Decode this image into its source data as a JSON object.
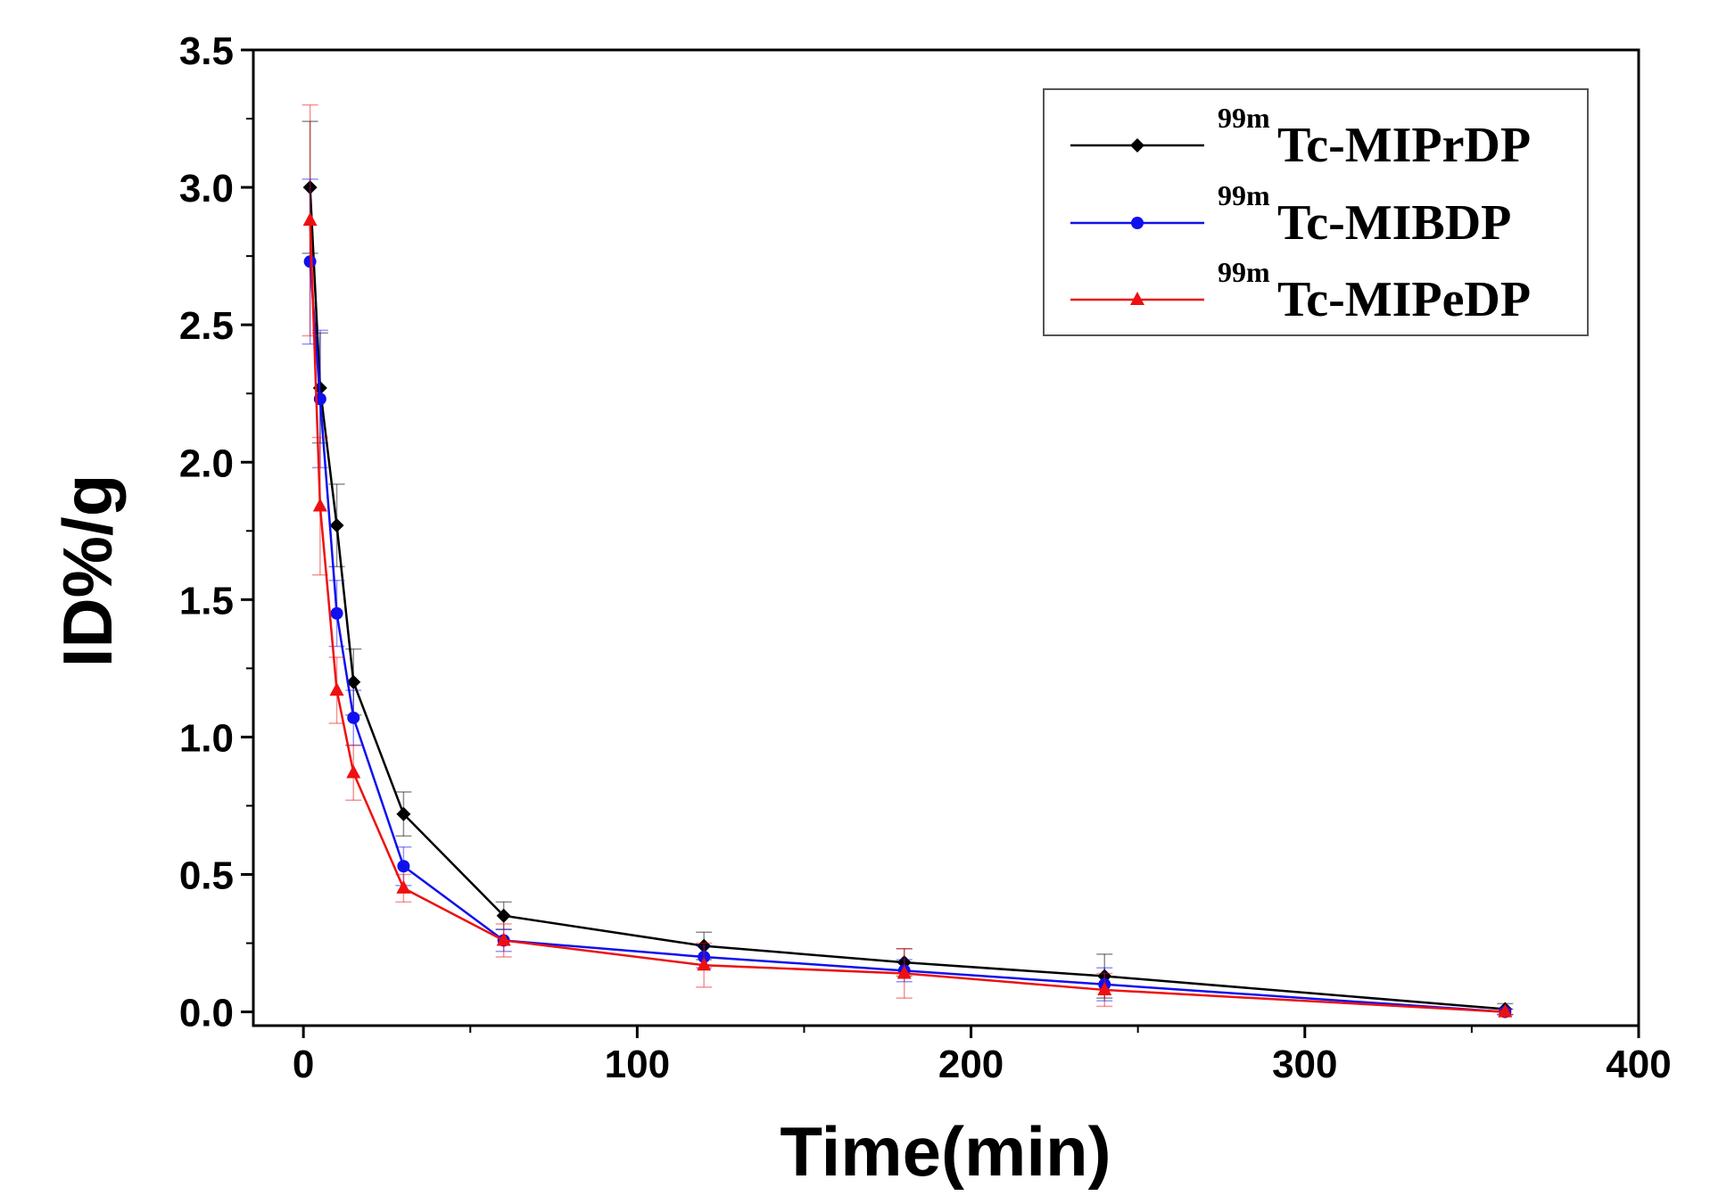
{
  "chart_data": {
    "type": "line",
    "xlabel": "Time(min)",
    "ylabel": "ID%/g",
    "xlim": [
      -15,
      400
    ],
    "ylim": [
      -0.05,
      3.5
    ],
    "xticks": [
      0,
      100,
      200,
      300,
      400
    ],
    "yticks": [
      0.0,
      0.5,
      1.0,
      1.5,
      2.0,
      2.5,
      3.0,
      3.5
    ],
    "xtick_labels": [
      "0",
      "100",
      "200",
      "300",
      "400"
    ],
    "ytick_labels": [
      "0.0",
      "0.5",
      "1.0",
      "1.5",
      "2.0",
      "2.5",
      "3.0",
      "3.5"
    ],
    "legend_position": "top-right",
    "x": [
      2,
      5,
      10,
      15,
      30,
      60,
      120,
      180,
      240,
      360
    ],
    "series": [
      {
        "name": "Tc-MIPrDP",
        "superscript": "99m",
        "color": "#000000",
        "marker": "diamond",
        "values": [
          3.0,
          2.27,
          1.77,
          1.2,
          0.72,
          0.35,
          0.24,
          0.18,
          0.13,
          0.01
        ],
        "errors": [
          0.24,
          0.2,
          0.15,
          0.12,
          0.08,
          0.05,
          0.05,
          0.05,
          0.08,
          0.02
        ]
      },
      {
        "name": "Tc-MIBDP",
        "superscript": "99m",
        "color": "#1010ee",
        "marker": "circle",
        "values": [
          2.73,
          2.23,
          1.45,
          1.07,
          0.53,
          0.26,
          0.2,
          0.15,
          0.1,
          0.0
        ],
        "errors": [
          0.3,
          0.25,
          0.12,
          0.1,
          0.07,
          0.04,
          0.04,
          0.04,
          0.06,
          0.01
        ]
      },
      {
        "name": "Tc-MIPeDP",
        "superscript": "99m",
        "color": "#ee1010",
        "marker": "triangle",
        "values": [
          2.88,
          1.84,
          1.17,
          0.87,
          0.45,
          0.26,
          0.17,
          0.14,
          0.08,
          0.0
        ],
        "errors": [
          0.42,
          0.25,
          0.12,
          0.1,
          0.05,
          0.06,
          0.08,
          0.09,
          0.06,
          0.01
        ]
      }
    ]
  }
}
